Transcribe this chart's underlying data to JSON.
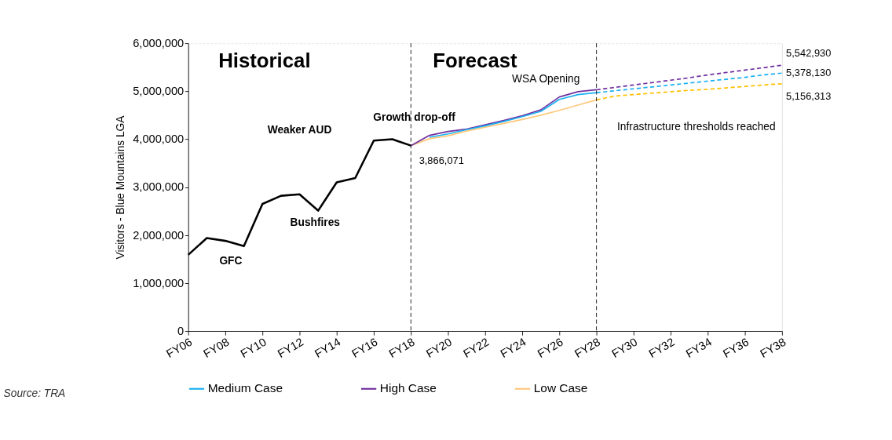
{
  "chart_data": {
    "type": "line",
    "ylabel": "Visitors - Blue Mountains LGA",
    "categories": [
      "FY06",
      null,
      "FY08",
      null,
      "FY10",
      null,
      "FY12",
      null,
      "FY14",
      null,
      "FY16",
      null,
      "FY18",
      null,
      "FY20",
      null,
      "FY22",
      null,
      "FY24",
      null,
      "FY26",
      null,
      "FY28",
      null,
      "FY30",
      null,
      "FY32",
      null,
      "FY34",
      null,
      "FY36",
      null,
      "FY38"
    ],
    "ylim": [
      0,
      6000000
    ],
    "yticks": [
      {
        "value": 0,
        "label": "0"
      },
      {
        "value": 1000000,
        "label": "1,000,000"
      },
      {
        "value": 2000000,
        "label": "2,000,000"
      },
      {
        "value": 3000000,
        "label": "3,000,000"
      },
      {
        "value": 4000000,
        "label": "4,000,000"
      },
      {
        "value": 5000000,
        "label": "5,000,000"
      },
      {
        "value": 6000000,
        "label": "6,000,000"
      }
    ],
    "grid": "y",
    "legend": "bottom",
    "marker": "none",
    "series": [
      {
        "color": "#000000",
        "line_style": "solid",
        "values": [
          1590000,
          1940000,
          1880000,
          1770000,
          2650000,
          2820000,
          2850000,
          2510000,
          3100000,
          3190000,
          3970000,
          4000000,
          3866071,
          null,
          null,
          null,
          null,
          null,
          null,
          null,
          null,
          null,
          null,
          null,
          null,
          null,
          null,
          null,
          null,
          null,
          null,
          null,
          null
        ]
      },
      {
        "name": "Medium Case",
        "color": "#1ab0f0",
        "line_style": "solid",
        "values": [
          null,
          null,
          null,
          null,
          null,
          null,
          null,
          null,
          null,
          null,
          null,
          null,
          null,
          4040000,
          4110000,
          4200000,
          4280000,
          4370000,
          4470000,
          4580000,
          4830000,
          4930000,
          4970000,
          null,
          null,
          null,
          null,
          null,
          null,
          null,
          null,
          null,
          null
        ]
      },
      {
        "name": "High Case",
        "color": "#7030a0",
        "line_style": "solid",
        "values": [
          null,
          null,
          null,
          null,
          null,
          null,
          null,
          null,
          null,
          null,
          null,
          null,
          3866071,
          4080000,
          4160000,
          4210000,
          4300000,
          4390000,
          4490000,
          4610000,
          4880000,
          4990000,
          5030000,
          null,
          null,
          null,
          null,
          null,
          null,
          null,
          null,
          null,
          null
        ]
      },
      {
        "name": "Low Case",
        "color": "#ffc87c",
        "line_style": "solid",
        "values": [
          null,
          null,
          null,
          null,
          null,
          null,
          null,
          null,
          null,
          null,
          null,
          null,
          3866071,
          4010000,
          4070000,
          4170000,
          4250000,
          4330000,
          4410000,
          4500000,
          4600000,
          4710000,
          4820000,
          null,
          null,
          null,
          null,
          null,
          null,
          null,
          null,
          null,
          null
        ]
      },
      {
        "color": "#7030a0",
        "line_style": "dashed",
        "values": [
          null,
          null,
          null,
          null,
          null,
          null,
          null,
          null,
          null,
          null,
          null,
          null,
          null,
          null,
          null,
          null,
          null,
          null,
          null,
          null,
          null,
          null,
          5030000,
          5080000,
          5130000,
          5180000,
          5230000,
          5280000,
          5340000,
          5390000,
          5440000,
          5490000,
          5542930
        ]
      },
      {
        "color": "#1ab0f0",
        "line_style": "dashed",
        "values": [
          null,
          null,
          null,
          null,
          null,
          null,
          null,
          null,
          null,
          null,
          null,
          null,
          null,
          null,
          null,
          null,
          null,
          null,
          null,
          null,
          null,
          null,
          4970000,
          5010000,
          5050000,
          5090000,
          5130000,
          5170000,
          5210000,
          5250000,
          5290000,
          5340000,
          5378130
        ]
      },
      {
        "color": "#ffc000",
        "line_style": "dashed",
        "values": [
          null,
          null,
          null,
          null,
          null,
          null,
          null,
          null,
          null,
          null,
          null,
          null,
          null,
          null,
          null,
          null,
          null,
          null,
          null,
          null,
          null,
          null,
          4820000,
          4900000,
          4930000,
          4960000,
          4990000,
          5020000,
          5040000,
          5070000,
          5100000,
          5130000,
          5156313
        ]
      }
    ],
    "ref_lines": [
      {
        "axis": "x",
        "value": "FY18",
        "line_style": "dashed"
      },
      {
        "axis": "x",
        "value": "FY28",
        "line_style": "dashed"
      }
    ],
    "annotations": [
      "Historical",
      "Forecast",
      "GFC",
      "Weaker AUD",
      "Bushfires",
      "Growth drop-off",
      "WSA Opening",
      "Infrastructure thresholds reached",
      {
        "text": "3,866,071",
        "x": "FY18",
        "y": 3866071
      },
      {
        "text": "5,542,930",
        "x": "FY38",
        "y": 5542930
      },
      {
        "text": "5,378,130",
        "x": "FY38",
        "y": 5378130
      },
      {
        "text": "5,156,313",
        "x": "FY38",
        "y": 5156313
      },
      "Source: TRA"
    ]
  }
}
